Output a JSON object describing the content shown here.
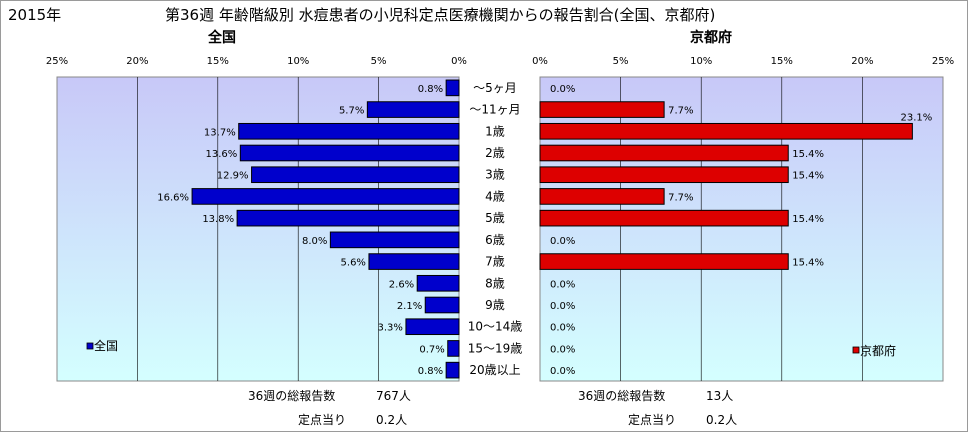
{
  "header": {
    "year": "2015年",
    "title": "第36週 年齢階級別 水痘患者の小児科定点医療機関からの報告割合(全国、京都府)"
  },
  "colors": {
    "national_bar": "#0000cc",
    "kyoto_bar": "#dd0000",
    "plot_bg_top": "#c8c8f8",
    "plot_bg_bottom": "#d4ffff"
  },
  "chart_data": [
    {
      "type": "bar",
      "title": "全国",
      "orientation": "horizontal",
      "direction": "right-to-left",
      "categories": [
        "～5ヶ月",
        "～11ヶ月",
        "1歳",
        "2歳",
        "3歳",
        "4歳",
        "5歳",
        "6歳",
        "7歳",
        "8歳",
        "9歳",
        "10～14歳",
        "15～19歳",
        "20歳以上"
      ],
      "series": [
        {
          "name": "全国",
          "values": [
            0.8,
            5.7,
            13.7,
            13.6,
            12.9,
            16.6,
            13.8,
            8.0,
            5.6,
            2.6,
            2.1,
            3.3,
            0.7,
            0.8
          ]
        }
      ],
      "data_labels": [
        "0.8%",
        "5.7%",
        "13.7%",
        "13.6%",
        "12.9%",
        "16.6%",
        "13.8%",
        "8.0%",
        "5.6%",
        "2.6%",
        "2.1%",
        "3.3%",
        "0.7%",
        "0.8%"
      ],
      "xlim": [
        0,
        25
      ],
      "x_ticks": [
        "25%",
        "20%",
        "15%",
        "10%",
        "5%",
        "0%"
      ],
      "grid": true,
      "legend_position": "bottom-left",
      "total_reports_label": "36週の総報告数",
      "total_reports_value": "767人",
      "per_site_label": "定点当り",
      "per_site_value": "0.2人"
    },
    {
      "type": "bar",
      "title": "京都府",
      "orientation": "horizontal",
      "direction": "left-to-right",
      "categories": [
        "～5ヶ月",
        "～11ヶ月",
        "1歳",
        "2歳",
        "3歳",
        "4歳",
        "5歳",
        "6歳",
        "7歳",
        "8歳",
        "9歳",
        "10～14歳",
        "15～19歳",
        "20歳以上"
      ],
      "series": [
        {
          "name": "京都府",
          "values": [
            0.0,
            7.7,
            23.1,
            15.4,
            15.4,
            7.7,
            15.4,
            0.0,
            15.4,
            0.0,
            0.0,
            0.0,
            0.0,
            0.0
          ]
        }
      ],
      "data_labels": [
        "0.0%",
        "7.7%",
        "23.1%",
        "15.4%",
        "15.4%",
        "7.7%",
        "15.4%",
        "0.0%",
        "15.4%",
        "0.0%",
        "0.0%",
        "0.0%",
        "0.0%",
        "0.0%"
      ],
      "xlim": [
        0,
        25
      ],
      "x_ticks": [
        "0%",
        "5%",
        "10%",
        "15%",
        "20%",
        "25%"
      ],
      "grid": true,
      "legend_position": "bottom-right",
      "total_reports_label": "36週の総報告数",
      "total_reports_value": "13人",
      "per_site_label": "定点当り",
      "per_site_value": "0.2人"
    }
  ]
}
